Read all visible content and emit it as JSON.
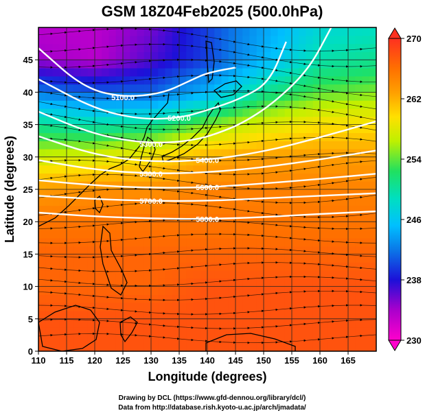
{
  "title": "GSM 18Z04Feb2025 (500.0hPa)",
  "xlabel": "Longitude (degrees)",
  "ylabel": "Latitude (degrees)",
  "credits": {
    "line1": "Drawing by DCL (https://www.gfd-dennou.org/library/dcl/)",
    "line2": "Data from http://database.rish.kyoto-u.ac.jp/arch/jmadata/"
  },
  "chart_data": {
    "type": "heatmap",
    "title": "GSM 18Z04Feb2025 (500.0hPa)",
    "xlabel": "Longitude (degrees)",
    "ylabel": "Latitude (degrees)",
    "xlim": [
      110,
      170
    ],
    "ylim": [
      0,
      50
    ],
    "x_ticks": [
      110,
      115,
      120,
      125,
      130,
      135,
      140,
      145,
      150,
      155,
      160,
      165
    ],
    "y_ticks": [
      0,
      5,
      10,
      15,
      20,
      25,
      30,
      35,
      40,
      45
    ],
    "colorbar": {
      "min": 230,
      "max": 270,
      "ticks": [
        230,
        238,
        246,
        254,
        262,
        270
      ],
      "colors": [
        "#ff00cc",
        "#aa00cc",
        "#1c10d8",
        "#0a78e8",
        "#00c0ff",
        "#00dfc0",
        "#20e060",
        "#bff000",
        "#ffe000",
        "#ffa000",
        "#ff7000",
        "#ff3020"
      ]
    },
    "temperature_field_K": {
      "lon": [
        110,
        120,
        130,
        140,
        150,
        160,
        170
      ],
      "lat": [
        0,
        5,
        10,
        15,
        20,
        25,
        30,
        35,
        40,
        45,
        50
      ],
      "values": [
        [
          268,
          268,
          268,
          268,
          268,
          268,
          268
        ],
        [
          268,
          268,
          268,
          268,
          268,
          268,
          268
        ],
        [
          267,
          267,
          267,
          268,
          268,
          268,
          268
        ],
        [
          267,
          267,
          267,
          267,
          267,
          267,
          267
        ],
        [
          266,
          266,
          266,
          266,
          266,
          266,
          266
        ],
        [
          263,
          264,
          264,
          265,
          265,
          265,
          265
        ],
        [
          256,
          257,
          259,
          262,
          263,
          263,
          263
        ],
        [
          250,
          249,
          250,
          254,
          257,
          259,
          259
        ],
        [
          241,
          240,
          240,
          244,
          250,
          253,
          254
        ],
        [
          234,
          233,
          236,
          239,
          244,
          249,
          250
        ],
        [
          233,
          233,
          235,
          239,
          243,
          247,
          248
        ]
      ]
    },
    "geopotential_height_contours_m": [
      {
        "label": "5100.0",
        "points": [
          [
            110,
            46.8
          ],
          [
            118,
            40.7
          ],
          [
            125,
            39.2
          ],
          [
            132,
            39.8
          ],
          [
            137,
            41.8
          ],
          [
            140,
            43.0
          ],
          [
            145,
            43.8
          ]
        ]
      },
      {
        "label": "5200.0",
        "points": [
          [
            110,
            42.0
          ],
          [
            120,
            37.4
          ],
          [
            128,
            35.8
          ],
          [
            135,
            36.0
          ],
          [
            140,
            37.2
          ],
          [
            146,
            39.0
          ],
          [
            151,
            41.5
          ],
          [
            154,
            47.8
          ]
        ]
      },
      {
        "label": "5300.0",
        "points": [
          [
            110,
            37.0
          ],
          [
            120,
            33.4
          ],
          [
            130,
            32.0
          ],
          [
            138,
            32.6
          ],
          [
            143,
            34.0
          ],
          [
            147,
            35.6
          ],
          [
            152,
            38.5
          ],
          [
            158,
            43.5
          ],
          [
            162,
            50.0
          ]
        ]
      },
      {
        "label": "5400.0",
        "points": [
          [
            110,
            33.2
          ],
          [
            120,
            30.3
          ],
          [
            130,
            29.2
          ],
          [
            140,
            29.5
          ],
          [
            150,
            30.8
          ],
          [
            160,
            33.0
          ],
          [
            170,
            35.5
          ]
        ]
      },
      {
        "label": "5500.0",
        "points": [
          [
            110,
            29.5
          ],
          [
            120,
            28.0
          ],
          [
            130,
            27.4
          ],
          [
            140,
            27.6
          ],
          [
            150,
            28.4
          ],
          [
            160,
            29.6
          ],
          [
            170,
            31.0
          ]
        ]
      },
      {
        "label": "5600.0",
        "points": [
          [
            110,
            26.4
          ],
          [
            120,
            25.6
          ],
          [
            130,
            25.2
          ],
          [
            140,
            25.3
          ],
          [
            150,
            25.9
          ],
          [
            160,
            26.6
          ],
          [
            170,
            27.4
          ]
        ]
      },
      {
        "label": "5700.0",
        "points": [
          [
            110,
            24.0
          ],
          [
            120,
            23.5
          ],
          [
            130,
            23.2
          ],
          [
            140,
            23.2
          ],
          [
            150,
            23.6
          ],
          [
            160,
            24.0
          ],
          [
            170,
            24.4
          ]
        ]
      },
      {
        "label": "5800.0",
        "points": [
          [
            110,
            21.4
          ],
          [
            120,
            20.8
          ],
          [
            130,
            20.5
          ],
          [
            140,
            20.4
          ],
          [
            150,
            20.7
          ],
          [
            160,
            21.2
          ],
          [
            170,
            21.6
          ]
        ]
      }
    ]
  }
}
